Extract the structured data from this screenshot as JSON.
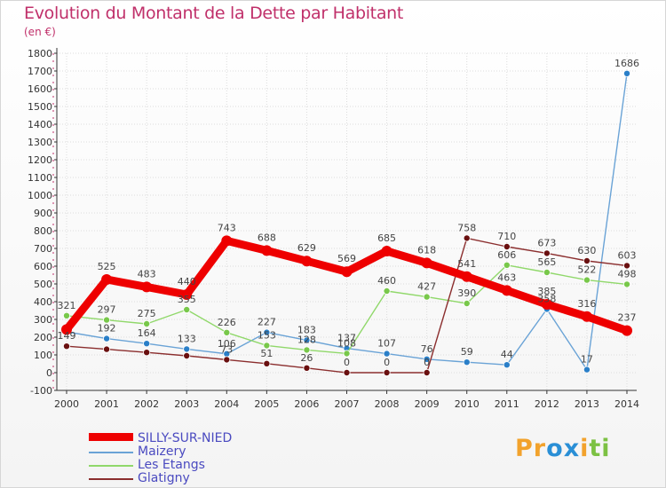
{
  "title": "Evolution du Montant de la Dette par Habitant",
  "subtitle": "(en €)",
  "brand": {
    "letters": [
      "P",
      "r",
      "o",
      "x",
      "i",
      "t",
      "i"
    ],
    "colors": [
      "#f2a22c",
      "#f2a22c",
      "#2a8fd6",
      "#2a8fd6",
      "#f2a22c",
      "#7cc143",
      "#7cc143"
    ]
  },
  "chart_data": {
    "type": "line",
    "title": "Evolution du Montant de la Dette par Habitant",
    "ylabel": "(en €)",
    "x": [
      "2000",
      "2001",
      "2002",
      "2003",
      "2004",
      "2005",
      "2006",
      "2007",
      "2008",
      "2009",
      "2010",
      "2011",
      "2012",
      "2013",
      "2014"
    ],
    "ylim": [
      -100,
      1800
    ],
    "yticks": [
      "-100",
      "0",
      "100",
      "200",
      "300",
      "400",
      "500",
      "600",
      "700",
      "800",
      "900",
      "1000",
      "1100",
      "1200",
      "1300",
      "1400",
      "1500",
      "1600",
      "1700",
      "1800"
    ],
    "grid": true,
    "series": [
      {
        "name": "SILLY-SUR-NIED",
        "color": "#ee0000",
        "marker": "#ee0000",
        "bold": true,
        "values": [
          243,
          525,
          483,
          440,
          743,
          688,
          629,
          569,
          685,
          618,
          541,
          463,
          385,
          316,
          237
        ],
        "labels": [
          "",
          "525",
          "483",
          "440",
          "743",
          "688",
          "629",
          "569",
          "685",
          "618",
          "541",
          "463",
          "385",
          "316",
          "237"
        ]
      },
      {
        "name": "Maizery",
        "color": "#6aa3d6",
        "marker": "#2a7fc8",
        "bold": false,
        "values": [
          230,
          192,
          164,
          133,
          106,
          227,
          183,
          137,
          107,
          76,
          59,
          44,
          358,
          17,
          1686
        ],
        "labels": [
          "",
          "192",
          "164",
          "133",
          "106",
          "227",
          "183",
          "137",
          "107",
          "76",
          "59",
          "44",
          "358",
          "17",
          "1686"
        ]
      },
      {
        "name": "Les Etangs",
        "color": "#90d86a",
        "marker": "#78c84a",
        "bold": false,
        "values": [
          321,
          297,
          275,
          355,
          226,
          153,
          128,
          108,
          460,
          427,
          390,
          606,
          565,
          522,
          498
        ],
        "labels": [
          "321",
          "297",
          "275",
          "355",
          "226",
          "153",
          "128",
          "108",
          "460",
          "427",
          "390",
          "606",
          "565",
          "522",
          "498"
        ]
      },
      {
        "name": "Glatigny",
        "color": "#8b2e2e",
        "marker": "#6a1010",
        "bold": false,
        "values": [
          149,
          132,
          114,
          95,
          73,
          51,
          26,
          0,
          0,
          0,
          758,
          710,
          673,
          630,
          603
        ],
        "labels": [
          "149",
          "",
          "",
          "",
          "73",
          "51",
          "26",
          "0",
          "0",
          "0",
          "758",
          "710",
          "673",
          "630",
          "603"
        ]
      }
    ],
    "legend": "bottom-left"
  }
}
